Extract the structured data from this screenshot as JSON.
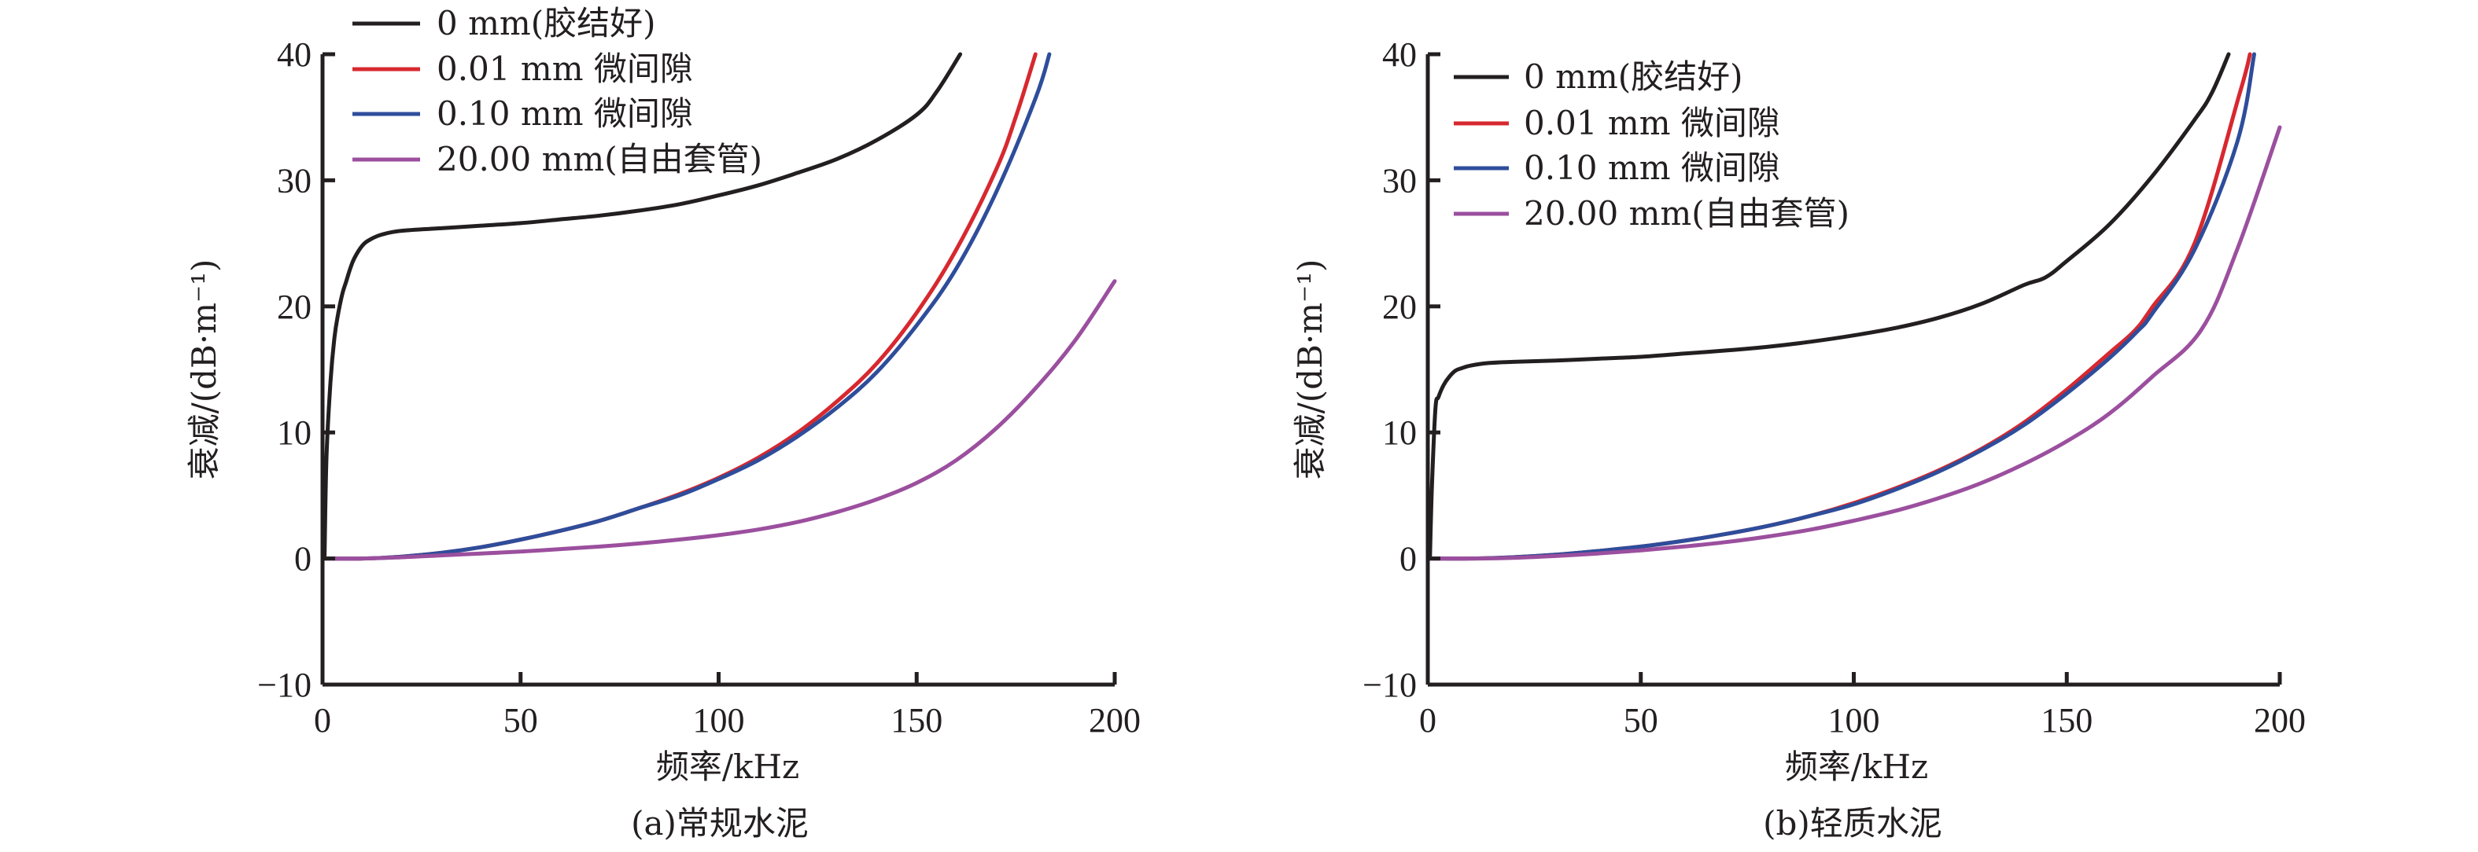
{
  "chart_data": [
    {
      "type": "line",
      "id": "a",
      "title": "(a)常规水泥",
      "xlabel": "频率/kHz",
      "ylabel": "衰减/(dB·m⁻¹)",
      "xlim": [
        0,
        200
      ],
      "ylim": [
        -10,
        40
      ],
      "xticks": [
        0,
        50,
        100,
        150,
        200
      ],
      "yticks": [
        -10,
        0,
        10,
        20,
        30,
        40
      ],
      "xtick_labels": [
        "0",
        "50",
        "100",
        "150",
        "200"
      ],
      "ytick_labels": [
        "−10",
        "0",
        "10",
        "20",
        "30",
        "40"
      ],
      "grid": false,
      "legend_position": "top-left",
      "series": [
        {
          "name": "0 mm(胶结好)",
          "color": "#231f20",
          "x": [
            0.5,
            1,
            2,
            3,
            4,
            5,
            6,
            7,
            8,
            10,
            12,
            15,
            20,
            30,
            40,
            50,
            60,
            70,
            80,
            90,
            100,
            110,
            120,
            130,
            140,
            150,
            155,
            161
          ],
          "y": [
            0,
            8,
            14,
            17.5,
            19.5,
            21,
            22,
            23,
            23.8,
            24.8,
            25.3,
            25.7,
            26,
            26.2,
            26.4,
            26.6,
            26.9,
            27.2,
            27.6,
            28.1,
            28.8,
            29.6,
            30.6,
            31.7,
            33.2,
            35.2,
            37,
            40
          ]
        },
        {
          "name": "0.01 mm 微间隙",
          "color": "#d7282f",
          "x": [
            0,
            10,
            20,
            30,
            40,
            50,
            60,
            70,
            80,
            90,
            100,
            110,
            120,
            130,
            140,
            150,
            160,
            170,
            175,
            180
          ],
          "y": [
            0,
            0,
            0.15,
            0.45,
            0.9,
            1.5,
            2.2,
            3.0,
            4.0,
            5.1,
            6.4,
            8.0,
            10.0,
            12.5,
            15.5,
            19.5,
            24.5,
            30.8,
            35,
            40
          ]
        },
        {
          "name": "0.10 mm 微间隙",
          "color": "#2e4d9b",
          "x": [
            0,
            10,
            20,
            30,
            40,
            50,
            60,
            70,
            80,
            90,
            100,
            110,
            120,
            130,
            140,
            150,
            160,
            170,
            180,
            183.5
          ],
          "y": [
            0,
            0,
            0.15,
            0.45,
            0.9,
            1.5,
            2.2,
            3.0,
            4.0,
            5.0,
            6.3,
            7.8,
            9.7,
            12.0,
            14.8,
            18.5,
            23,
            29,
            36.5,
            40
          ]
        },
        {
          "name": "20.00 mm(自由套管)",
          "color": "#9b4f9e",
          "x": [
            0,
            10,
            20,
            30,
            40,
            50,
            60,
            70,
            80,
            90,
            100,
            110,
            120,
            130,
            140,
            150,
            160,
            170,
            180,
            190,
            200
          ],
          "y": [
            0,
            0,
            0.1,
            0.25,
            0.4,
            0.55,
            0.75,
            0.95,
            1.2,
            1.5,
            1.85,
            2.3,
            2.9,
            3.7,
            4.7,
            6.0,
            7.8,
            10.3,
            13.5,
            17.3,
            22
          ]
        }
      ]
    },
    {
      "type": "line",
      "id": "b",
      "title": "(b)轻质水泥",
      "xlabel": "频率/kHz",
      "ylabel": "衰减/(dB·m⁻¹)",
      "xlim": [
        0,
        200
      ],
      "ylim": [
        -10,
        40
      ],
      "xticks": [
        0,
        50,
        100,
        150,
        200
      ],
      "yticks": [
        -10,
        0,
        10,
        20,
        30,
        40
      ],
      "xtick_labels": [
        "0",
        "50",
        "100",
        "150",
        "200"
      ],
      "ytick_labels": [
        "−10",
        "0",
        "10",
        "20",
        "30",
        "40"
      ],
      "grid": false,
      "legend_position": "top-left",
      "series": [
        {
          "name": "0 mm(胶结好)",
          "color": "#231f20",
          "x": [
            0.5,
            1,
            1.8,
            2.5,
            3.7,
            5,
            6.5,
            8,
            10,
            14,
            20,
            30,
            40,
            50,
            60,
            70,
            80,
            90,
            100,
            110,
            120,
            130,
            140,
            145,
            150,
            160,
            170,
            180,
            184,
            188
          ],
          "y": [
            0,
            6,
            11.9,
            12.8,
            13.75,
            14.4,
            14.9,
            15.1,
            15.3,
            15.5,
            15.6,
            15.7,
            15.85,
            16.0,
            16.25,
            16.5,
            16.8,
            17.2,
            17.7,
            18.3,
            19.1,
            20.2,
            21.7,
            22.3,
            23.6,
            26.5,
            30.3,
            34.8,
            36.9,
            40
          ]
        },
        {
          "name": "0.01 mm 微间隙",
          "color": "#d7282f",
          "x": [
            0,
            10,
            20,
            30,
            40,
            50,
            60,
            70,
            80,
            90,
            100,
            110,
            120,
            130,
            140,
            150,
            160,
            166,
            170,
            180,
            190.6,
            193
          ],
          "y": [
            0,
            0,
            0.1,
            0.3,
            0.6,
            0.95,
            1.4,
            1.95,
            2.6,
            3.4,
            4.4,
            5.6,
            7.0,
            8.7,
            10.8,
            13.4,
            16.3,
            18.1,
            19.9,
            25,
            36.9,
            40
          ]
        },
        {
          "name": "0.10 mm 微间隙",
          "color": "#2e4d9b",
          "x": [
            0,
            10,
            20,
            30,
            40,
            50,
            60,
            70,
            80,
            90,
            100,
            110,
            120,
            130,
            140,
            150,
            160,
            166.8,
            170,
            180,
            190,
            194
          ],
          "y": [
            0,
            0,
            0.1,
            0.3,
            0.6,
            0.95,
            1.4,
            1.95,
            2.6,
            3.4,
            4.3,
            5.5,
            6.9,
            8.6,
            10.6,
            13.1,
            15.9,
            18.1,
            19.4,
            24.5,
            33,
            40
          ]
        },
        {
          "name": "20.00 mm(自由套管)",
          "color": "#9b4f9e",
          "x": [
            0,
            10,
            20,
            30,
            40,
            50,
            60,
            70,
            80,
            90,
            100,
            110,
            120,
            130,
            140,
            150,
            160,
            170,
            181.5,
            190,
            200
          ],
          "y": [
            0,
            0,
            0.05,
            0.2,
            0.4,
            0.65,
            0.95,
            1.3,
            1.75,
            2.3,
            3.0,
            3.8,
            4.8,
            6.0,
            7.5,
            9.3,
            11.5,
            14.4,
            18.1,
            24.5,
            34.2
          ]
        }
      ]
    }
  ]
}
